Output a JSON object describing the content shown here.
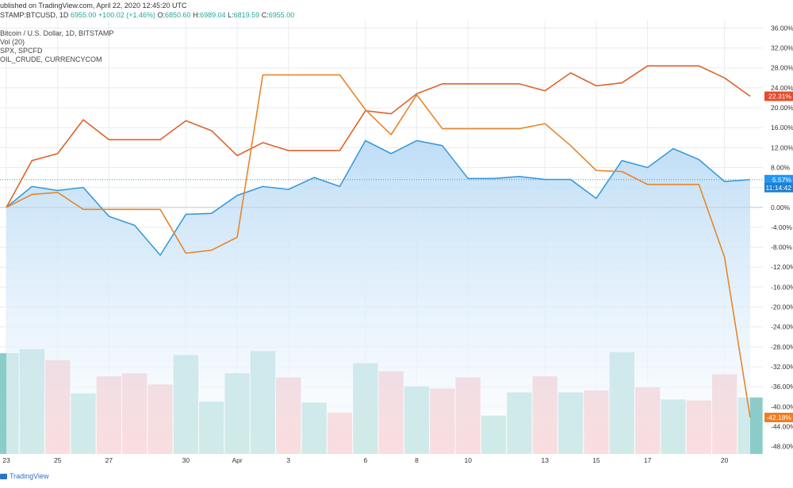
{
  "header": {
    "published": "ublished on TradingView.com, April 22, 2020 12:45:20 UTC",
    "symbol": "STAMP:BTCUSD, 1D",
    "symbol_value": "6955.00",
    "change": "+100.02 (+1.46%)",
    "o_label": "O:",
    "o_value": "6850.60",
    "h_label": "H:",
    "h_value": "6989.04",
    "l_label": "L:",
    "l_value": "6819.59",
    "c_label": "C:",
    "c_value": "6955.00"
  },
  "legend": [
    "Bitcoin / U.S. Dollar, 1D, BITSTAMP",
    "Vol (20)",
    "SPX, SPCFD",
    "OIL_CRUDE, CURRENCYCOM"
  ],
  "footer": {
    "brand": "TradingView"
  },
  "colors": {
    "btc": "#3a9ad9",
    "spx": "#e0622a",
    "oil": "#e8852c",
    "vol_up": "#7ec6c2",
    "vol_down": "#f2a1a5",
    "area_top": "#bcdcf6",
    "grid": "#e8ecef",
    "zero_line": "#c7cdd2",
    "btc_label_bg": "#2196f3",
    "time_label_bg": "#1f7fd1",
    "spx_label_bg": "#e84a2a",
    "oil_label_bg": "#ef7d22"
  },
  "chart_data": {
    "type": "line",
    "x": [
      "Mar 23",
      "Mar 24",
      "Mar 25",
      "Mar 26",
      "Mar 27",
      "Mar 28",
      "Mar 29",
      "Mar 30",
      "Mar 31",
      "Apr 1",
      "Apr 2",
      "Apr 3",
      "Apr 4",
      "Apr 5",
      "Apr 6",
      "Apr 7",
      "Apr 8",
      "Apr 9",
      "Apr 10",
      "Apr 11",
      "Apr 12",
      "Apr 13",
      "Apr 14",
      "Apr 15",
      "Apr 16",
      "Apr 17",
      "Apr 18",
      "Apr 19",
      "Apr 20",
      "Apr 21"
    ],
    "x_tick_labels": [
      "23",
      "25",
      "27",
      "30",
      "Apr",
      "3",
      "6",
      "8",
      "10",
      "13",
      "15",
      "17",
      "20"
    ],
    "y_ticks": [
      36,
      32,
      28,
      24,
      20,
      16,
      12,
      8,
      4,
      0,
      -4,
      -8,
      -12,
      -16,
      -20,
      -24,
      -28,
      -32,
      -36,
      -40,
      -44,
      -48
    ],
    "y_tick_labels": [
      "36.00%",
      "32.00%",
      "28.00%",
      "24.00%",
      "20.00%",
      "16.00%",
      "12.00%",
      "8.00%",
      "4.00%",
      "0.00%",
      "-4.00%",
      "-8.00%",
      "-12.00%",
      "-16.00%",
      "-20.00%",
      "-24.00%",
      "-28.00%",
      "-32.00%",
      "-36.00%",
      "-40.00%",
      "-44.00%",
      "-48.00%"
    ],
    "ylim": [
      -49.5,
      37.5
    ],
    "series": [
      {
        "name": "Bitcoin / U.S. Dollar, 1D, BITSTAMP",
        "color_key": "btc",
        "values": [
          0.0,
          4.2,
          3.4,
          4.0,
          -1.8,
          -3.6,
          -9.6,
          -1.4,
          -1.2,
          2.4,
          4.2,
          3.6,
          6.0,
          4.2,
          13.4,
          10.8,
          13.4,
          12.4,
          5.8,
          5.8,
          6.2,
          5.6,
          5.6,
          1.8,
          9.4,
          8.0,
          11.8,
          9.6,
          5.2,
          5.57
        ]
      },
      {
        "name": "SPX, SPCFD",
        "color_key": "spx",
        "values": [
          0.0,
          9.4,
          10.8,
          17.6,
          13.6,
          13.6,
          13.6,
          17.4,
          15.4,
          10.4,
          13.0,
          11.4,
          11.4,
          11.4,
          19.4,
          18.8,
          22.8,
          24.8,
          24.8,
          24.8,
          24.8,
          23.4,
          27.0,
          24.4,
          25.0,
          28.4,
          28.4,
          28.4,
          26.0,
          22.31
        ]
      },
      {
        "name": "OIL_CRUDE, CURRENCYCOM",
        "color_key": "oil",
        "values": [
          0.0,
          2.6,
          3.0,
          -0.4,
          -0.4,
          -0.4,
          -0.4,
          -9.2,
          -8.6,
          -6.0,
          26.6,
          26.6,
          26.6,
          26.6,
          19.6,
          14.6,
          22.6,
          15.8,
          15.8,
          15.8,
          15.8,
          16.8,
          12.4,
          7.4,
          7.2,
          4.6,
          4.6,
          4.6,
          -10.0,
          -42.18
        ]
      }
    ],
    "volume": {
      "values": [
        100,
        104,
        93,
        60,
        77,
        80,
        69,
        98,
        52,
        80,
        102,
        76,
        51,
        41,
        90,
        82,
        67,
        65,
        76,
        38,
        61,
        77,
        61,
        63,
        101,
        66,
        54,
        53,
        79,
        56
      ],
      "direction": [
        "up",
        "up",
        "down",
        "up",
        "down",
        "down",
        "down",
        "up",
        "up",
        "up",
        "up",
        "down",
        "up",
        "down",
        "up",
        "down",
        "up",
        "down",
        "down",
        "up",
        "up",
        "down",
        "up",
        "down",
        "up",
        "down",
        "up",
        "down",
        "down",
        "up"
      ]
    },
    "price_labels": [
      {
        "text": "22.31%",
        "color_key": "spx_label_bg",
        "value": 22.31
      },
      {
        "text": "5.57%",
        "color_key": "btc_label_bg",
        "value": 5.57
      },
      {
        "text": "11:14:42",
        "color_key": "time_label_bg",
        "value": 5.57
      },
      {
        "text": "-42.18%",
        "color_key": "oil_label_bg",
        "value": -42.18
      }
    ]
  }
}
